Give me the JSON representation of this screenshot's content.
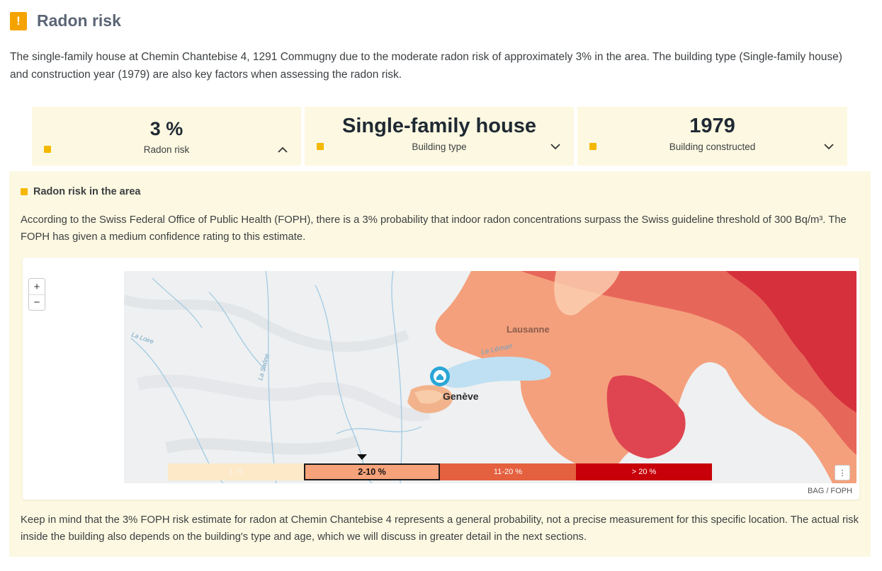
{
  "header": {
    "icon": "warning-icon",
    "icon_glyph": "!",
    "title": "Radon risk",
    "accent": "#f5a300"
  },
  "intro": "The single-family house at Chemin Chantebise 4, 1291 Commugny due to the moderate radon risk of approximately 3% in the area. The building type (Single-family house) and construction year (1979) are also key factors when assessing the radon risk.",
  "cards": [
    {
      "value": "3 %",
      "label": "Radon risk",
      "chevron": "chevron-up-icon",
      "expanded": true
    },
    {
      "value": "Single-family house",
      "label": "Building type",
      "chevron": "chevron-down-icon",
      "expanded": false
    },
    {
      "value": "1979",
      "label": "Building constructed",
      "chevron": "chevron-down-icon",
      "expanded": false
    }
  ],
  "panel": {
    "heading": "Radon risk in the area",
    "text": "According to the Swiss Federal Office of Public Health (FOPH), there is a 3% probability that indoor radon concentrations surpass the Swiss guideline threshold of 300 Bq/m³. The FOPH has given a medium confidence rating to this estimate.",
    "footer": "Keep in mind that the 3% FOPH risk estimate for radon at Chemin Chantebise 4 represents a general probability, not a precise measurement for this specific location. The actual risk inside the building also depends on the building's type and age, which we will discuss in greater detail in the next sections."
  },
  "map": {
    "zoom_in": "+",
    "zoom_out": "−",
    "places": {
      "lausanne": "Lausanne",
      "geneve": "Genève",
      "lake": "Le Léman",
      "loire": "La Loire",
      "saone": "La Saône"
    },
    "legend": [
      {
        "label": "1 %",
        "color": "#fde9c8",
        "active": false
      },
      {
        "label": "2-10 %",
        "color": "#f6a27a",
        "active": true
      },
      {
        "label": "11-20 %",
        "color": "#e4603f",
        "active": false
      },
      {
        "label": "> 20 %",
        "color": "#c8000a",
        "active": false
      }
    ],
    "info_icon": "⋮",
    "attribution": "BAG / FOPH",
    "location_marker": "home-location-icon"
  }
}
